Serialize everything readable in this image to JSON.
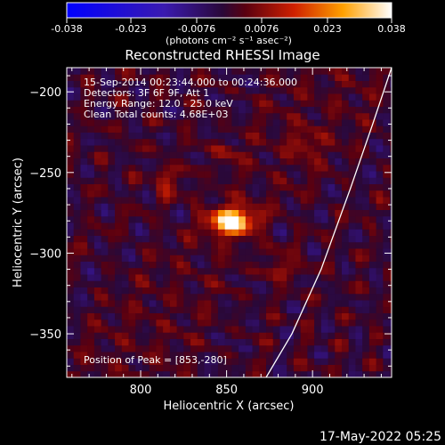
{
  "chart_data": {
    "type": "heatmap",
    "title": "Reconstructed RHESSI Image",
    "xlabel": "Heliocentric X (arcsec)",
    "ylabel": "Heliocentric Y (arcsec)",
    "xlim": [
      757,
      946
    ],
    "ylim": [
      -377,
      -185
    ],
    "x_ticks": [
      800,
      850,
      900
    ],
    "y_ticks": [
      -200,
      -250,
      -300,
      -350
    ],
    "colorbar": {
      "min": -0.038,
      "max": 0.038,
      "tick_labels": [
        "-0.038",
        "-0.023",
        "-0.0076",
        "0.0076",
        "0.023",
        "0.038"
      ],
      "tick_values": [
        -0.038,
        -0.023,
        -0.0076,
        0.0076,
        0.023,
        0.038
      ],
      "unit_label": "(photons cm⁻² s⁻¹ asec⁻²)"
    },
    "info_lines": [
      "15-Sep-2014 00:23:44.000 to 00:24:36.000",
      "Detectors: 3F 6F 9F, Att 1",
      "Energy Range: 12.0 - 25.0 keV",
      "Clean    Total counts: 4.68E+03"
    ],
    "peak_text": "Position of Peak = [853,-280]",
    "peak": {
      "x": 853,
      "y": -280,
      "value": 0.038
    },
    "limb_curve": [
      [
        946,
        -185
      ],
      [
        935,
        -220
      ],
      [
        922,
        -260
      ],
      [
        905,
        -310
      ],
      [
        888,
        -350
      ],
      [
        873,
        -377
      ]
    ],
    "sources": [
      {
        "x": 853,
        "y": -280,
        "sx": 9,
        "sy": 6,
        "amp": 0.038
      },
      {
        "x": 816,
        "y": -256,
        "sx": 6,
        "sy": 6,
        "amp": 0.01
      },
      {
        "x": 895,
        "y": -232,
        "sx": 6,
        "sy": 6,
        "amp": 0.009
      },
      {
        "x": 882,
        "y": -308,
        "sx": 7,
        "sy": 6,
        "amp": 0.008
      },
      {
        "x": 848,
        "y": -238,
        "sx": 6,
        "sy": 5,
        "amp": 0.007
      }
    ]
  },
  "footer": {
    "date": "17-May-2022 05:25"
  }
}
